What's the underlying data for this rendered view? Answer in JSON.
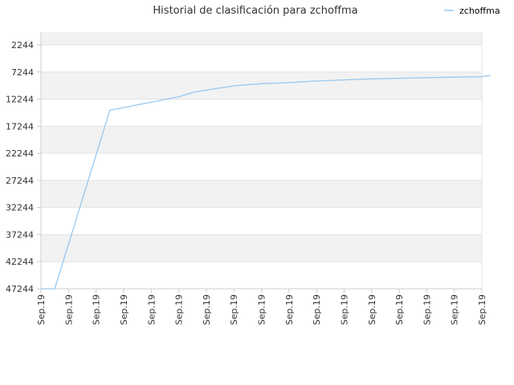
{
  "chart_data": {
    "type": "line",
    "title": "Historial de clasificación para zchoffma",
    "legend": {
      "position": "top-right",
      "entries": [
        "zchoffma"
      ]
    },
    "y_axis": {
      "inverted": true,
      "ylim": [
        2244,
        47244
      ],
      "tick_labels": [
        "2244",
        "7244",
        "12244",
        "17244",
        "22244",
        "27244",
        "32244",
        "37244",
        "42244",
        "47244"
      ],
      "tick_values": [
        2244,
        7244,
        12244,
        17244,
        22244,
        27244,
        32244,
        37244,
        42244,
        47244
      ]
    },
    "x_axis": {
      "tick_labels": [
        "Sep.19",
        "Sep.19",
        "Sep.19",
        "Sep.19",
        "Sep.19",
        "Sep.19",
        "Sep.19",
        "Sep.19",
        "Sep.19",
        "Sep.19",
        "Sep.19",
        "Sep.19",
        "Sep.19",
        "Sep.19",
        "Sep.19",
        "Sep.19",
        "Sep.19"
      ]
    },
    "grid": true,
    "series": [
      {
        "name": "zchoffma",
        "color": "#99c8ee",
        "x": [
          0,
          0.5,
          2.5,
          3,
          5,
          5.6,
          6,
          7,
          8,
          9,
          10,
          11,
          12,
          13,
          14,
          15,
          16,
          16.3
        ],
        "values": [
          47244,
          47244,
          14300,
          13800,
          11800,
          10900,
          10600,
          9800,
          9400,
          9200,
          8900,
          8700,
          8500,
          8400,
          8300,
          8200,
          8100,
          7900
        ]
      }
    ]
  },
  "colors": {
    "band_light": "#f2f2f2",
    "band_white": "#ffffff",
    "grid": "#e3e3e3",
    "axis": "#cccccc"
  }
}
